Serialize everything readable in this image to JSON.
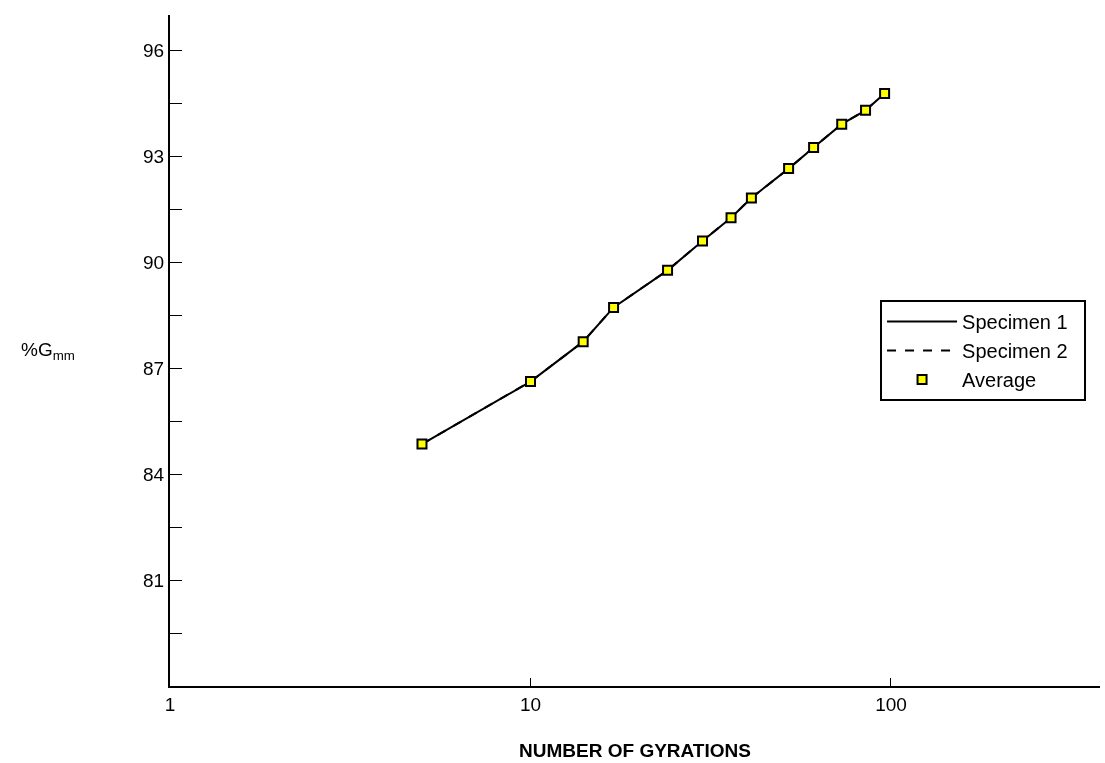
{
  "chart_data": {
    "type": "line",
    "xlabel": "NUMBER OF GYRATIONS",
    "ylabel": "%G$_{mm}$",
    "x": [
      5,
      10,
      14,
      17,
      24,
      30,
      36,
      41,
      52,
      61,
      73,
      85,
      96
    ],
    "series": [
      {
        "name": "Specimen 1",
        "color": "#000000",
        "line_style": "solid",
        "marker": "none",
        "values": [
          84.85,
          86.62,
          87.75,
          88.72,
          89.77,
          90.6,
          91.26,
          91.82,
          92.65,
          93.25,
          93.91,
          94.3,
          94.78
        ]
      },
      {
        "name": "Specimen 2",
        "color": "#000000",
        "line_style": "dashed",
        "marker": "none",
        "values": [
          84.85,
          86.62,
          87.75,
          88.72,
          89.77,
          90.6,
          91.26,
          91.82,
          92.65,
          93.25,
          93.91,
          94.3,
          94.78
        ]
      },
      {
        "name": "Average",
        "color": "#ffff00",
        "type": "scatter",
        "marker": "square",
        "values": [
          84.85,
          86.62,
          87.75,
          88.72,
          89.77,
          90.6,
          91.26,
          91.82,
          92.65,
          93.25,
          93.91,
          94.3,
          94.78
        ]
      }
    ],
    "log": "x",
    "xlim": [
      1,
      380
    ],
    "xticks": [
      1,
      10,
      100
    ],
    "ylim": [
      78,
      97
    ],
    "yticks": [
      {
        "value": 79.5,
        "label": null
      },
      81,
      {
        "value": 82.5,
        "label": null
      },
      84,
      {
        "value": 85.5,
        "label": null
      },
      87,
      {
        "value": 88.5,
        "label": null
      },
      90,
      {
        "value": 91.5,
        "label": null
      },
      93,
      {
        "value": 94.5,
        "label": null
      },
      96
    ],
    "legend": "right"
  }
}
